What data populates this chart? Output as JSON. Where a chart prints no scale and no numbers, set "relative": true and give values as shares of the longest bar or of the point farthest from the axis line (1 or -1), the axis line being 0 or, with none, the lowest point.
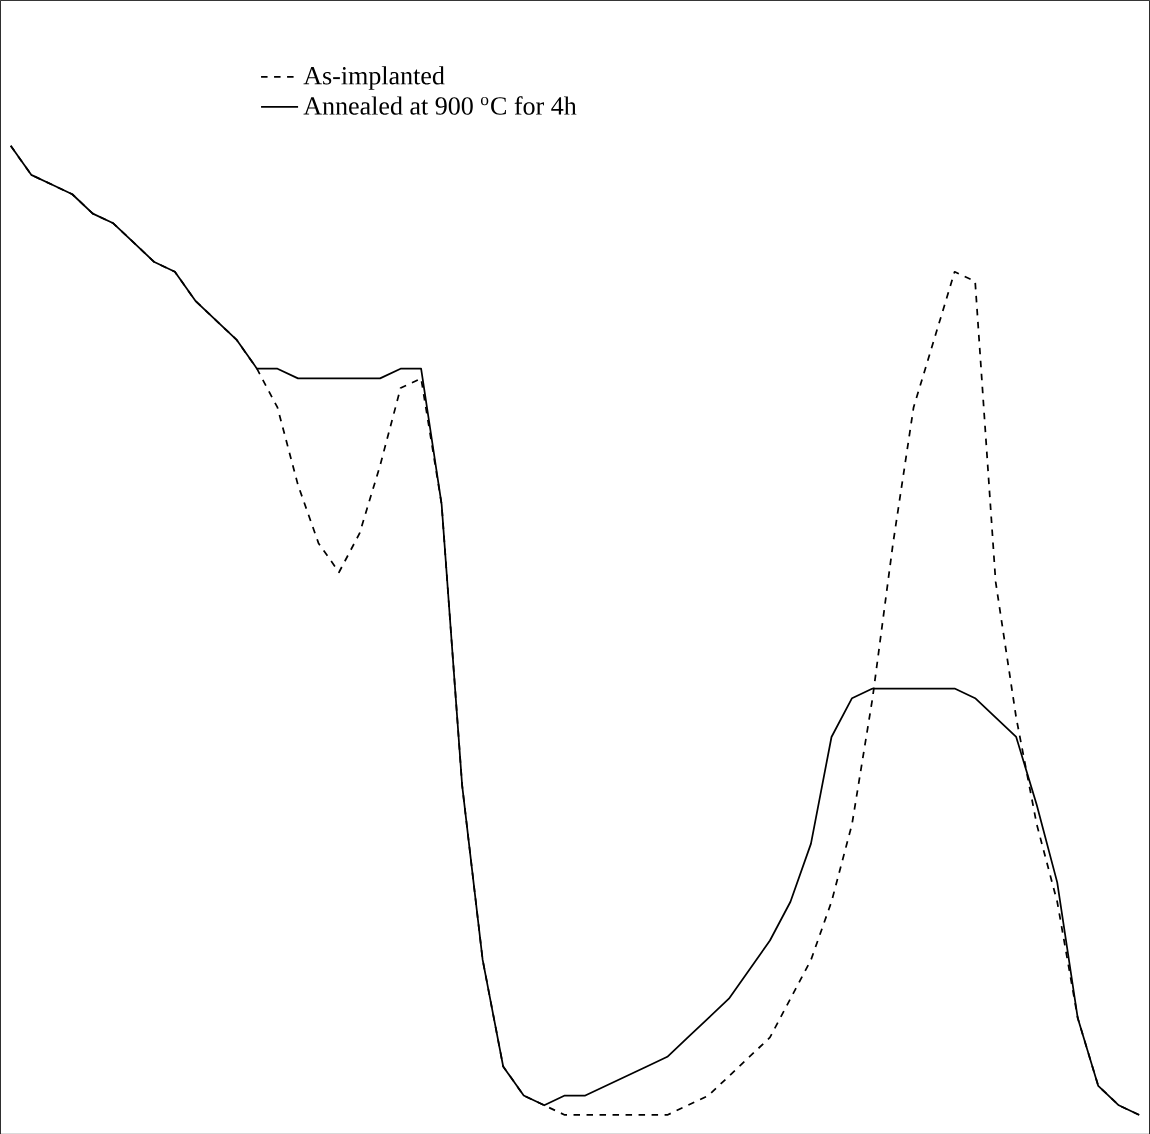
{
  "chart_data": {
    "type": "line",
    "relative": true,
    "legend": "top left",
    "marker": "none",
    "categories": [
      null,
      null,
      null,
      null,
      null,
      null,
      null,
      null,
      null,
      null,
      null,
      null,
      null,
      null,
      null,
      null,
      null,
      null,
      null,
      null,
      null,
      null,
      null,
      null,
      null,
      null,
      null,
      null,
      null,
      null,
      null,
      null,
      null,
      null,
      null,
      null,
      null,
      null,
      null,
      null,
      null,
      null,
      null,
      null,
      null,
      null,
      null,
      null,
      null,
      null,
      null,
      null,
      null,
      null,
      null,
      null
    ],
    "series": [
      {
        "name": "As-implanted",
        "color": "#000000",
        "line_style": "dashed",
        "values": [
          1.0,
          0.97,
          0.96,
          0.95,
          0.93,
          0.92,
          0.9,
          0.88,
          0.87,
          0.84,
          0.82,
          0.8,
          0.77,
          0.73,
          0.65,
          0.59,
          0.56,
          0.6,
          0.67,
          0.75,
          0.76,
          0.63,
          0.34,
          0.16,
          0.05,
          0.02,
          0.01,
          0,
          0,
          0,
          0,
          0,
          0,
          0.01,
          0.02,
          0.04,
          0.06,
          0.08,
          0.12,
          0.16,
          0.22,
          0.3,
          0.43,
          0.59,
          0.73,
          0.8,
          0.87,
          0.86,
          0.55,
          0.41,
          0.3,
          0.22,
          0.1,
          0.03,
          0.01,
          0
        ]
      },
      {
        "name": "Annealed at 900 $^{o}$C for 4h",
        "color": "#000000",
        "line_style": "solid",
        "values": [
          1.0,
          0.97,
          0.96,
          0.95,
          0.93,
          0.92,
          0.9,
          0.88,
          0.87,
          0.84,
          0.82,
          0.8,
          0.77,
          0.77,
          0.76,
          0.76,
          0.76,
          0.76,
          0.76,
          0.77,
          0.77,
          0.63,
          0.34,
          0.16,
          0.05,
          0.02,
          0.01,
          0.02,
          0.02,
          0.03,
          0.04,
          0.05,
          0.06,
          0.08,
          0.1,
          0.12,
          0.15,
          0.18,
          0.22,
          0.28,
          0.39,
          0.43,
          0.44,
          0.44,
          0.44,
          0.44,
          0.44,
          0.43,
          0.41,
          0.39,
          0.32,
          0.24,
          0.1,
          0.03,
          0.01,
          0
        ]
      }
    ]
  }
}
